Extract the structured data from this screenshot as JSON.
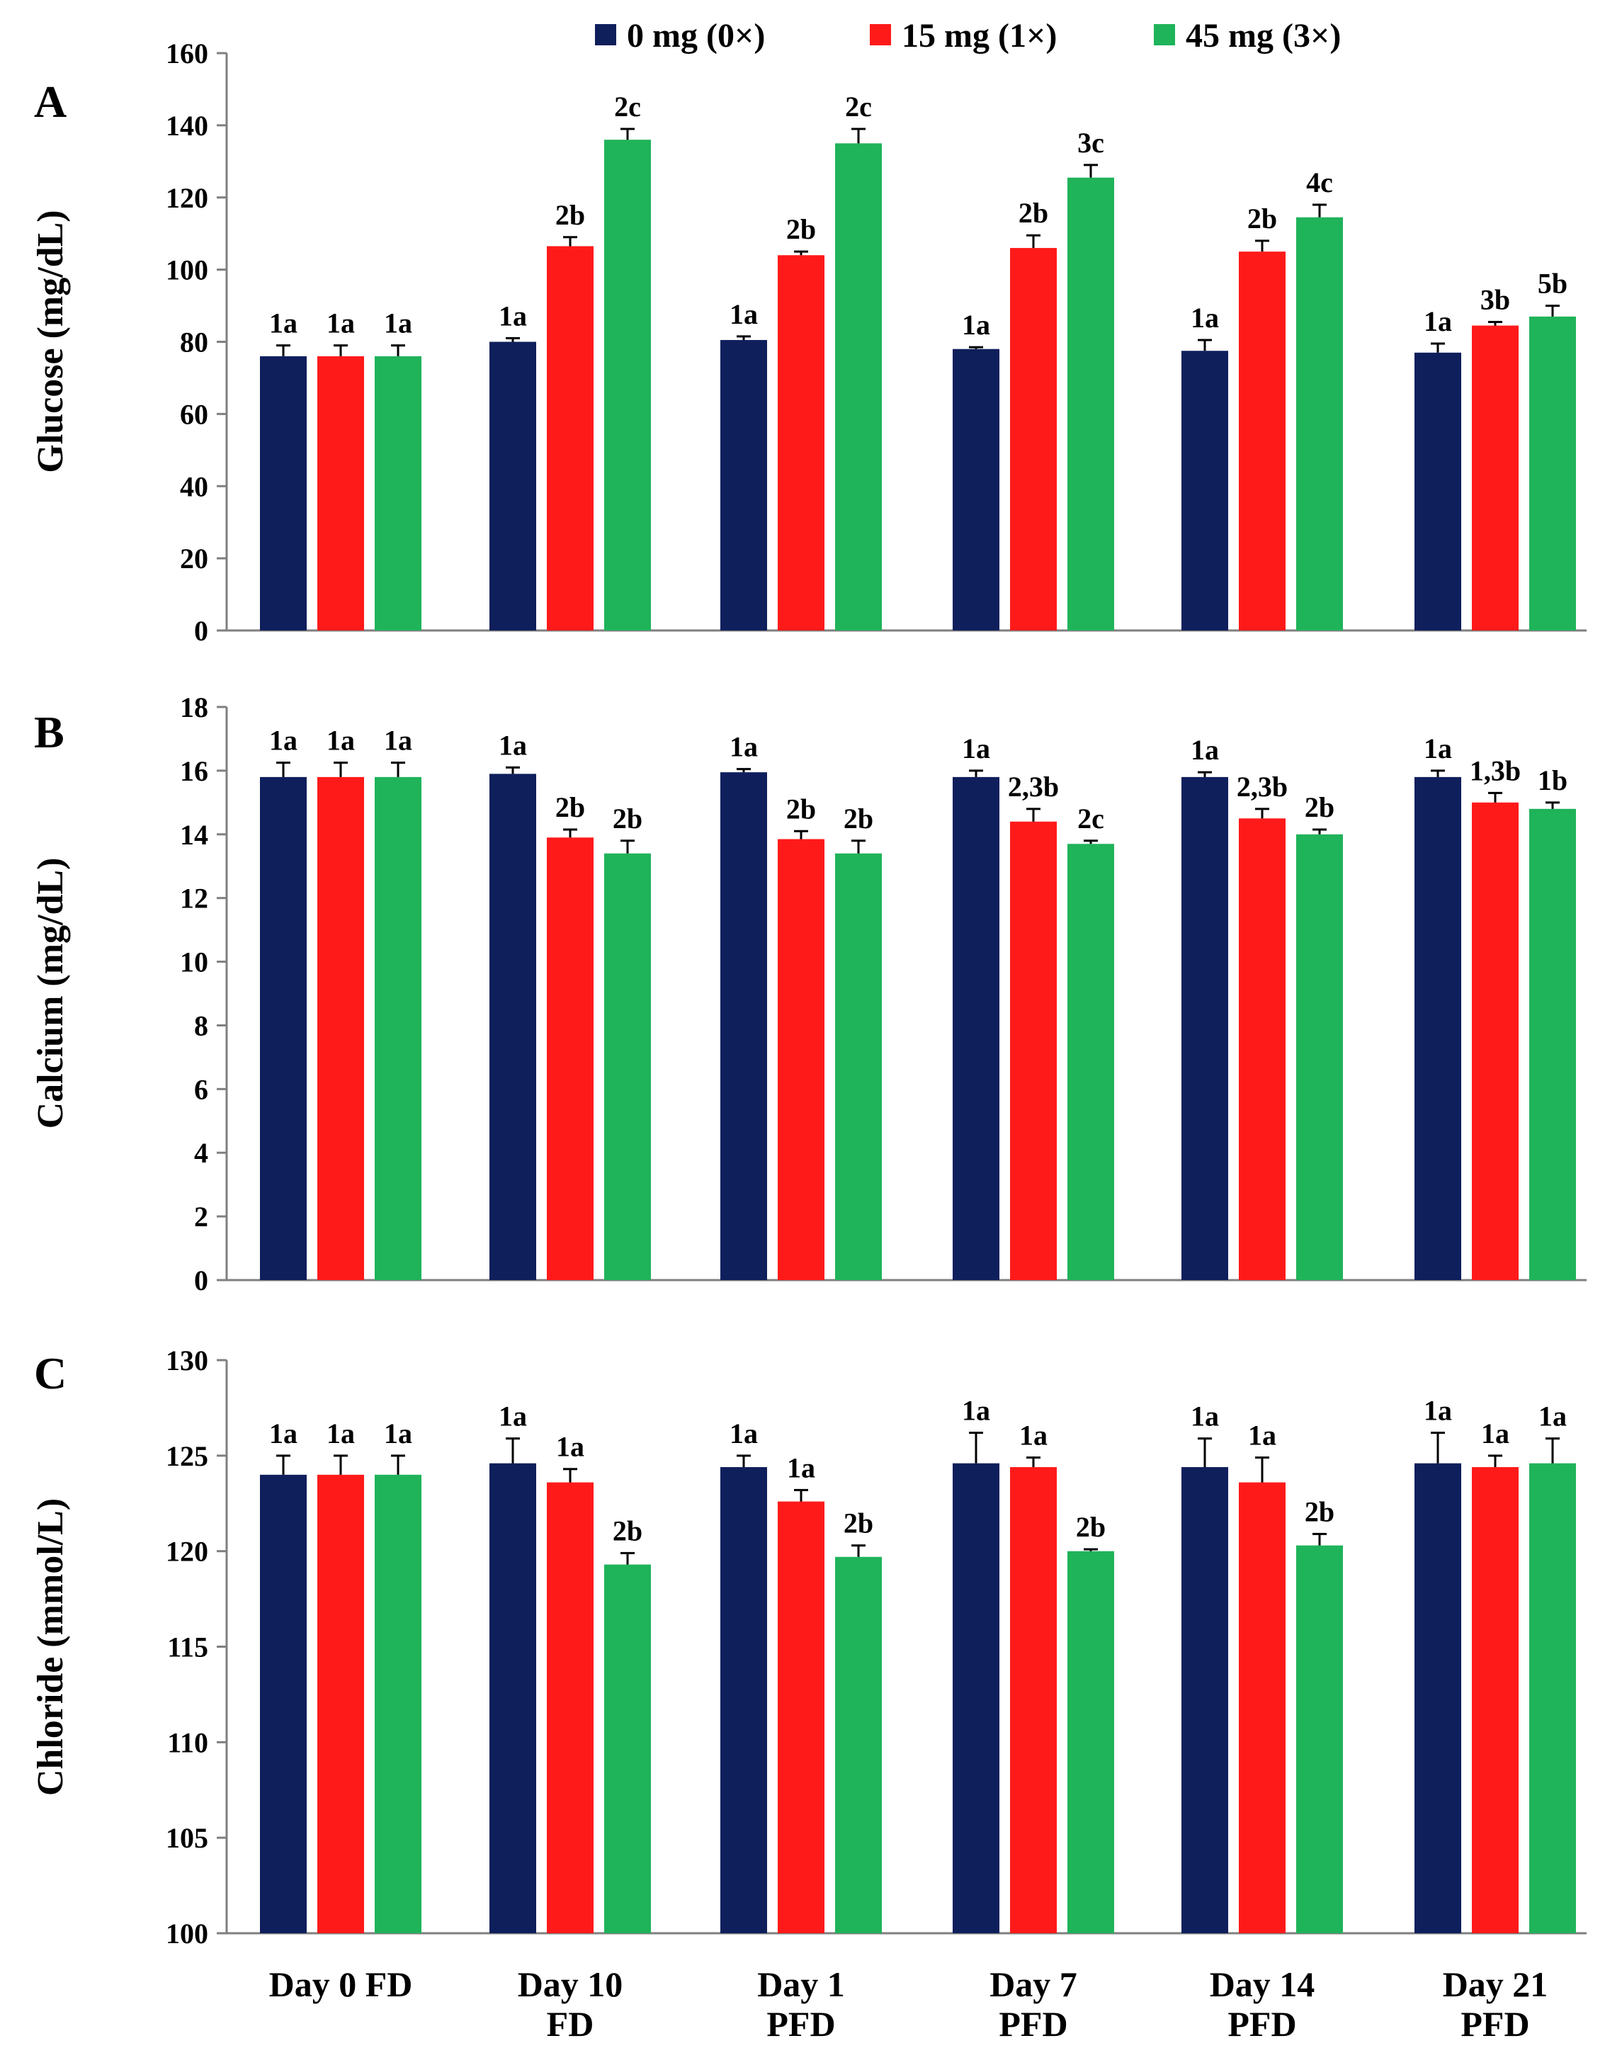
{
  "colors": {
    "series": [
      "#0f1f5c",
      "#ff1a1a",
      "#1fb35a"
    ],
    "axis": "#7f7f7f",
    "text": "#000000",
    "errorbar": "#000000"
  },
  "legend": {
    "entries": [
      "0 mg (0×)",
      "15 mg (1×)",
      "45 mg (3×)"
    ]
  },
  "x_axis": {
    "categories": [
      [
        "Day 0 FD"
      ],
      [
        "Day 10",
        "FD"
      ],
      [
        "Day 1",
        "PFD"
      ],
      [
        "Day 7",
        "PFD"
      ],
      [
        "Day 14",
        "PFD"
      ],
      [
        "Day 21",
        "PFD"
      ]
    ]
  },
  "chart_data": [
    {
      "panel": "A",
      "type": "bar",
      "ylabel": "Glucose (mg/dL)",
      "ylim": [
        0,
        160
      ],
      "yticks": [
        0,
        20,
        40,
        60,
        80,
        100,
        120,
        140,
        160
      ],
      "categories": [
        "Day 0 FD",
        "Day 10 FD",
        "Day 1 PFD",
        "Day 7 PFD",
        "Day 14 PFD",
        "Day 21 PFD"
      ],
      "series": [
        {
          "name": "0 mg (0×)",
          "values": [
            76,
            80,
            80.5,
            78,
            77.5,
            77
          ],
          "errors": [
            3,
            1,
            1,
            0.5,
            3,
            2.5
          ],
          "labels": [
            "1a",
            "1a",
            "1a",
            "1a",
            "1a",
            "1a"
          ]
        },
        {
          "name": "15 mg (1×)",
          "values": [
            76,
            106.5,
            104,
            106,
            105,
            84.5
          ],
          "errors": [
            3,
            2.5,
            1,
            3.5,
            3,
            1
          ],
          "labels": [
            "1a",
            "2b",
            "2b",
            "2b",
            "2b",
            "3b"
          ]
        },
        {
          "name": "45 mg (3×)",
          "values": [
            76,
            136,
            135,
            125.5,
            114.5,
            87
          ],
          "errors": [
            3,
            3,
            4,
            3.5,
            3.5,
            3
          ],
          "labels": [
            "1a",
            "2c",
            "2c",
            "3c",
            "4c",
            "5b"
          ]
        }
      ]
    },
    {
      "panel": "B",
      "type": "bar",
      "ylabel": "Calcium (mg/dL)",
      "ylim": [
        0,
        18
      ],
      "yticks": [
        0,
        2,
        4,
        6,
        8,
        10,
        12,
        14,
        16,
        18
      ],
      "categories": [
        "Day 0 FD",
        "Day 10 FD",
        "Day 1 PFD",
        "Day 7 PFD",
        "Day 14 PFD",
        "Day 21 PFD"
      ],
      "series": [
        {
          "name": "0 mg (0×)",
          "values": [
            15.8,
            15.9,
            15.95,
            15.8,
            15.8,
            15.8
          ],
          "errors": [
            0.45,
            0.2,
            0.1,
            0.2,
            0.15,
            0.2
          ],
          "labels": [
            "1a",
            "1a",
            "1a",
            "1a",
            "1a",
            "1a"
          ]
        },
        {
          "name": "15 mg (1×)",
          "values": [
            15.8,
            13.9,
            13.85,
            14.4,
            14.5,
            15.0
          ],
          "errors": [
            0.45,
            0.25,
            0.25,
            0.4,
            0.3,
            0.3
          ],
          "labels": [
            "1a",
            "2b",
            "2b",
            "2,3b",
            "2,3b",
            "1,3b"
          ]
        },
        {
          "name": "45 mg (3×)",
          "values": [
            15.8,
            13.4,
            13.4,
            13.7,
            14.0,
            14.8
          ],
          "errors": [
            0.45,
            0.4,
            0.4,
            0.1,
            0.15,
            0.2
          ],
          "labels": [
            "1a",
            "2b",
            "2b",
            "2c",
            "2b",
            "1b"
          ]
        }
      ]
    },
    {
      "panel": "C",
      "type": "bar",
      "ylabel": "Chloride (mmol/L)",
      "ylim": [
        100,
        130
      ],
      "yticks": [
        100,
        105,
        110,
        115,
        120,
        125,
        130
      ],
      "categories": [
        "Day 0 FD",
        "Day 10 FD",
        "Day 1 PFD",
        "Day 7 PFD",
        "Day 14 PFD",
        "Day 21 PFD"
      ],
      "series": [
        {
          "name": "0 mg (0×)",
          "values": [
            124,
            124.6,
            124.4,
            124.6,
            124.4,
            124.6
          ],
          "errors": [
            1,
            1.3,
            0.6,
            1.6,
            1.5,
            1.6
          ],
          "labels": [
            "1a",
            "1a",
            "1a",
            "1a",
            "1a",
            "1a"
          ]
        },
        {
          "name": "15 mg (1×)",
          "values": [
            124,
            123.6,
            122.6,
            124.4,
            123.6,
            124.4
          ],
          "errors": [
            1,
            0.7,
            0.6,
            0.5,
            1.3,
            0.6
          ],
          "labels": [
            "1a",
            "1a",
            "1a",
            "1a",
            "1a",
            "1a"
          ]
        },
        {
          "name": "45 mg (3×)",
          "values": [
            124,
            119.3,
            119.7,
            120,
            120.3,
            124.6
          ],
          "errors": [
            1,
            0.6,
            0.6,
            0.1,
            0.6,
            1.3
          ],
          "labels": [
            "1a",
            "2b",
            "2b",
            "2b",
            "2b",
            "1a"
          ]
        }
      ]
    }
  ]
}
